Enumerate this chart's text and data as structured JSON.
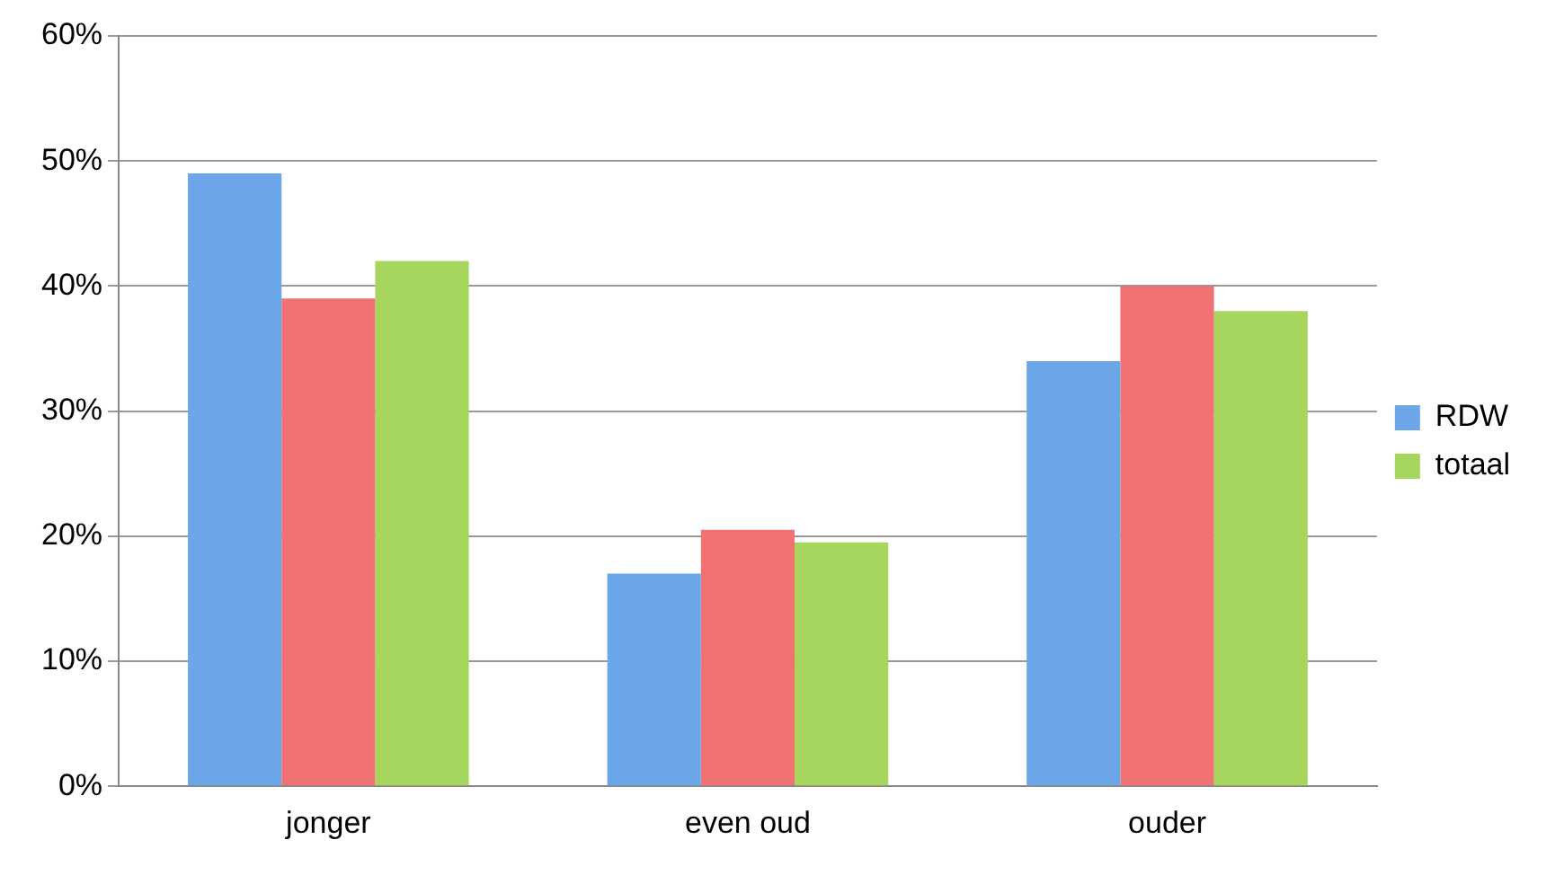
{
  "chart_data": {
    "type": "bar",
    "categories": [
      "jonger",
      "even oud",
      "ouder"
    ],
    "series": [
      {
        "name": "RDW",
        "color": "#6aa6e8",
        "values": [
          49,
          17,
          34
        ]
      },
      {
        "color": "#f07272",
        "values": [
          39,
          20.5,
          40
        ]
      },
      {
        "name": "totaal",
        "color": "#a6d65e",
        "values": [
          42,
          19.5,
          38
        ]
      }
    ],
    "ylim": [
      0,
      60
    ],
    "yticks": [
      {
        "value": 0,
        "label": "0%"
      },
      {
        "value": 10,
        "label": "10%"
      },
      {
        "value": 20,
        "label": "20%"
      },
      {
        "value": 30,
        "label": "30%"
      },
      {
        "value": 40,
        "label": "40%"
      },
      {
        "value": 50,
        "label": "50%"
      },
      {
        "value": 60,
        "label": "60%"
      }
    ],
    "grid": "y",
    "legend": "right"
  }
}
